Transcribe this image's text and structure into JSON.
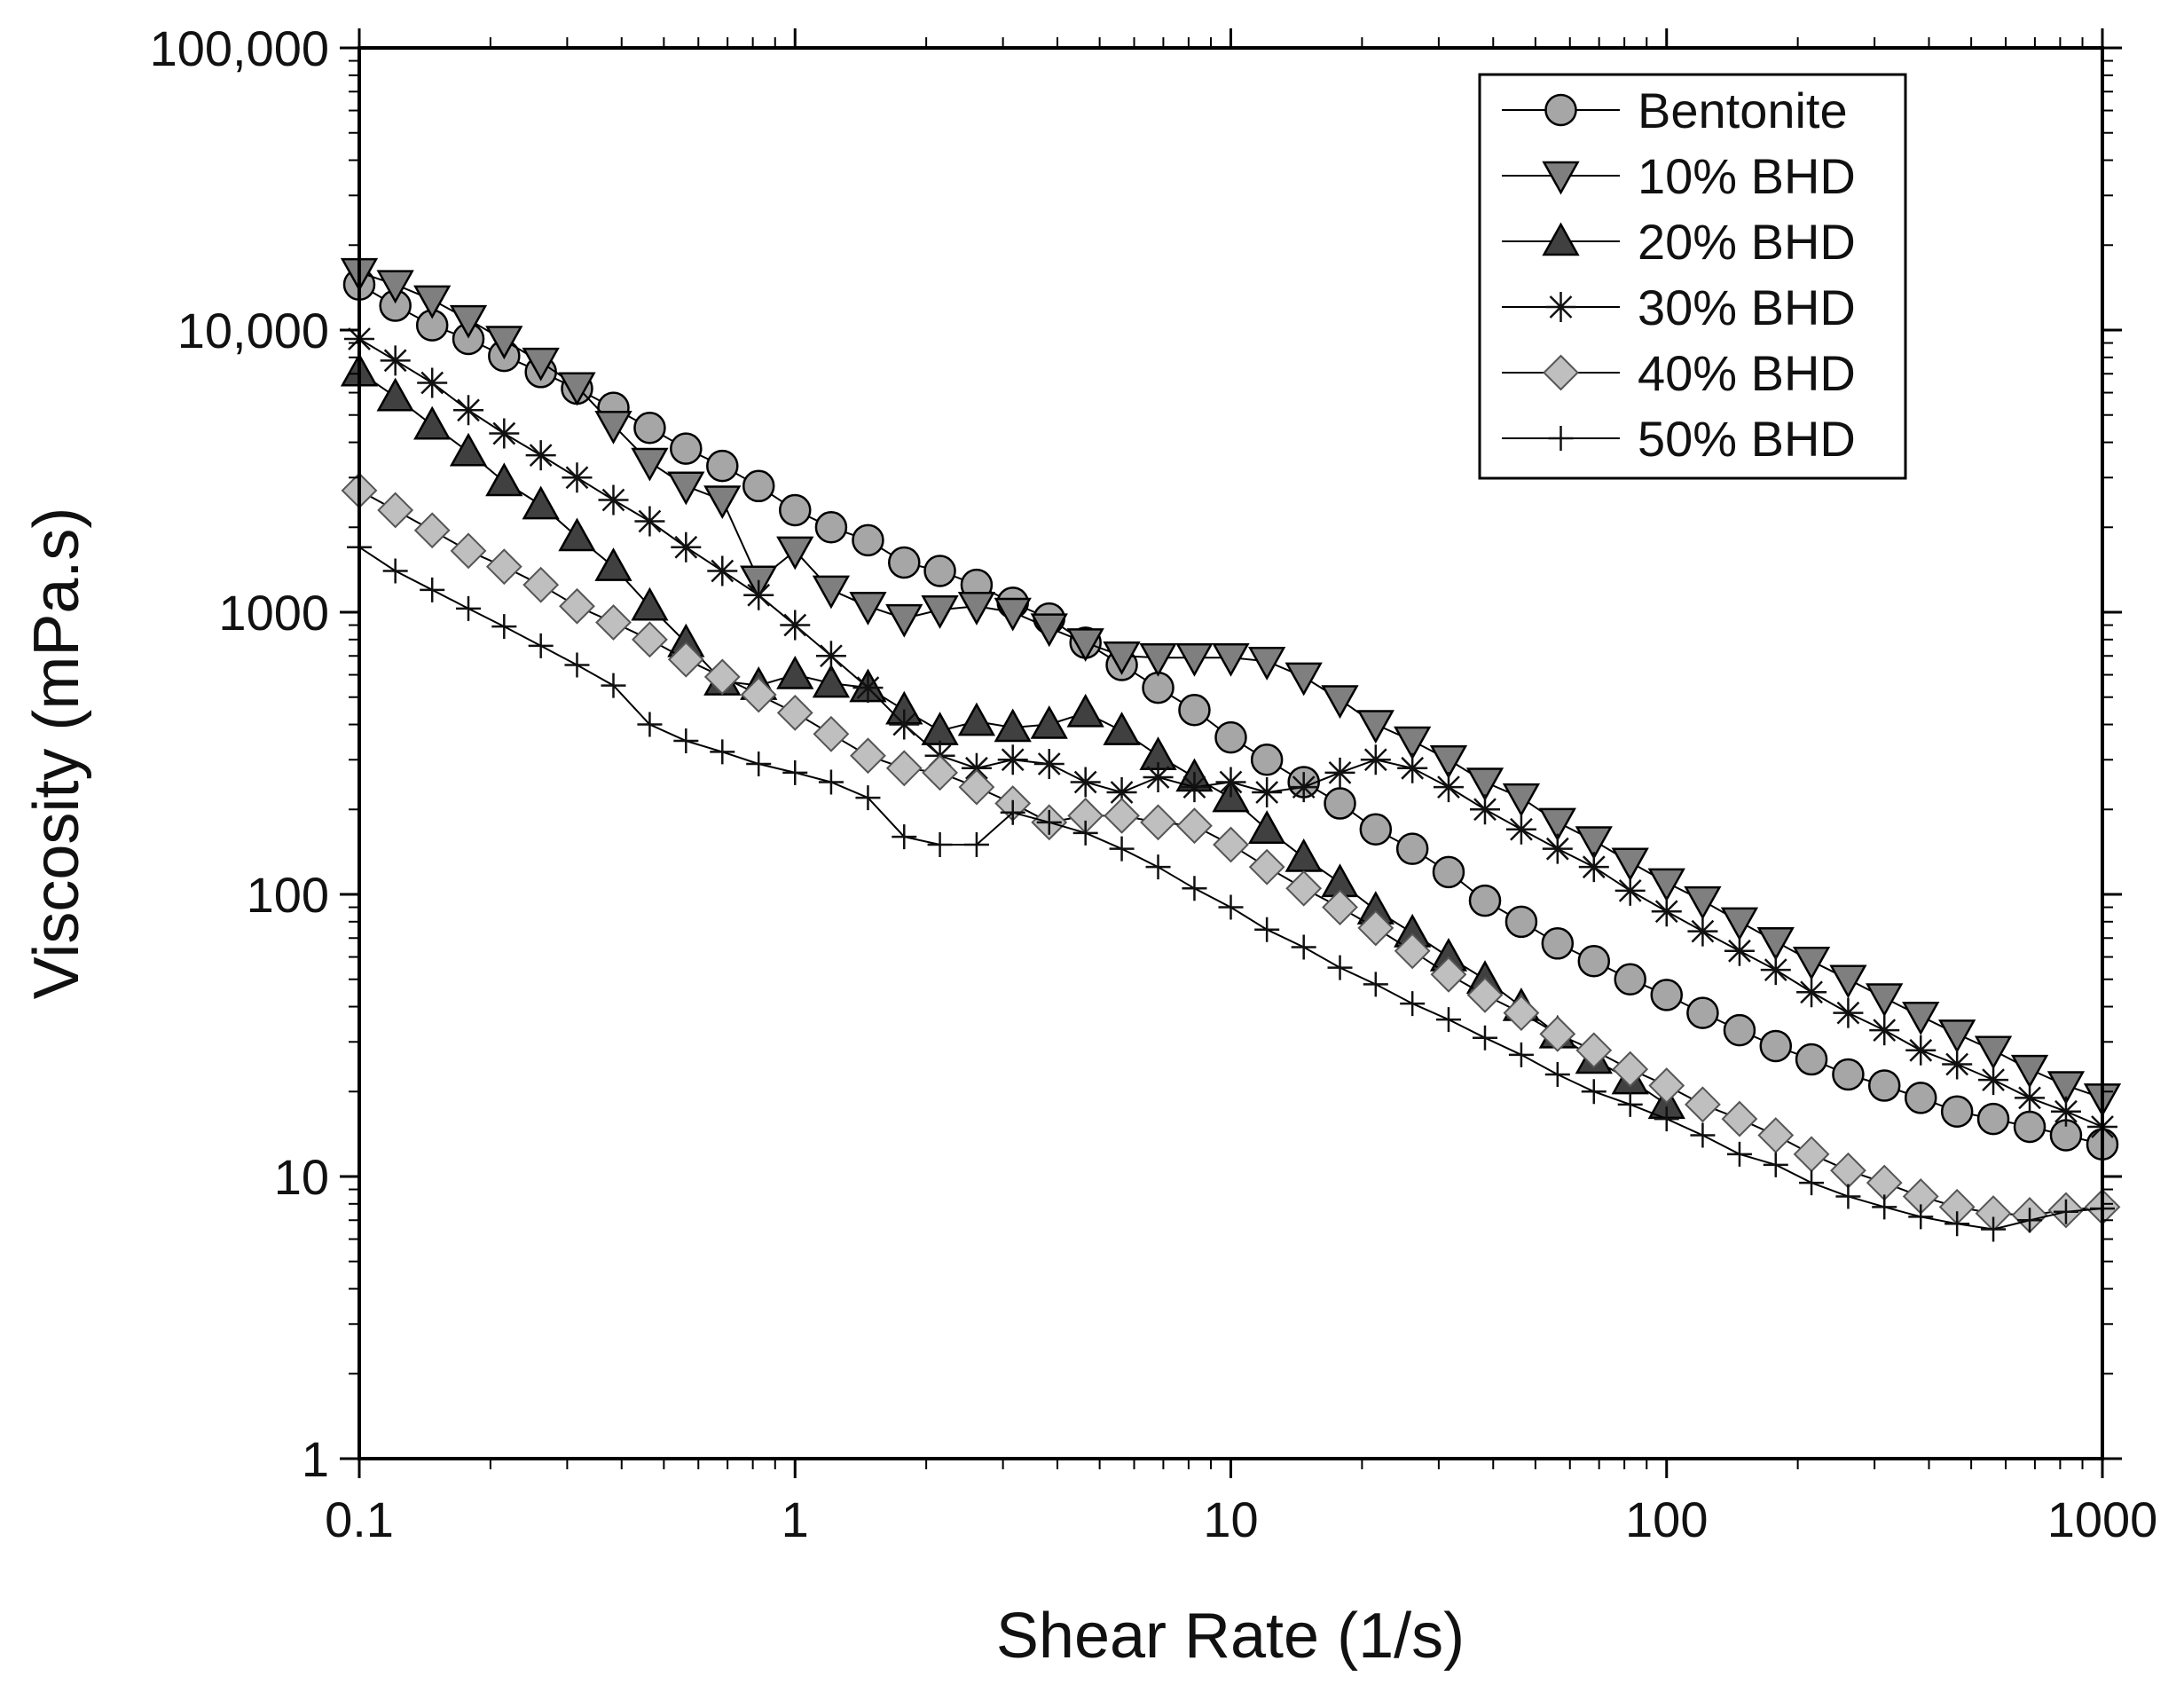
{
  "chart_data": {
    "type": "scatter",
    "xlabel": "Shear Rate (1/s)",
    "ylabel": "Viscosity (mPa.s)",
    "xscale": "log",
    "yscale": "log",
    "xlim": [
      0.1,
      1000
    ],
    "ylim": [
      1,
      100000
    ],
    "x_ticks": [
      {
        "value": 0.1,
        "label": "0.1"
      },
      {
        "value": 1,
        "label": "1"
      },
      {
        "value": 10,
        "label": "10"
      },
      {
        "value": 100,
        "label": "100"
      },
      {
        "value": 1000,
        "label": "1000"
      }
    ],
    "y_ticks": [
      {
        "value": 1,
        "label": "1"
      },
      {
        "value": 10,
        "label": "10"
      },
      {
        "value": 100,
        "label": "100"
      },
      {
        "value": 1000,
        "label": "1000"
      },
      {
        "value": 10000,
        "label": "10,000"
      },
      {
        "value": 100000,
        "label": "100,000"
      }
    ],
    "legend_position": "top-right",
    "series": [
      {
        "name": "Bentonite",
        "marker": "circle",
        "fill": "#a6a6a6",
        "x": [
          0.1,
          0.121,
          0.147,
          0.178,
          0.215,
          0.261,
          0.316,
          0.383,
          0.464,
          0.562,
          0.681,
          0.825,
          1.0,
          1.21,
          1.47,
          1.78,
          2.15,
          2.61,
          3.16,
          3.83,
          4.64,
          5.62,
          6.81,
          8.25,
          10.0,
          12.1,
          14.7,
          17.8,
          21.5,
          26.1,
          31.6,
          38.3,
          46.4,
          56.2,
          68.1,
          82.5,
          100,
          121,
          147,
          178,
          215,
          261,
          316,
          383,
          464,
          562,
          681,
          825,
          1000
        ],
        "y": [
          14500,
          12200,
          10400,
          9300,
          8100,
          7100,
          6200,
          5300,
          4500,
          3800,
          3300,
          2800,
          2300,
          2000,
          1800,
          1500,
          1400,
          1250,
          1080,
          950,
          780,
          650,
          540,
          450,
          360,
          300,
          250,
          210,
          170,
          145,
          120,
          95,
          80,
          67,
          58,
          50,
          44,
          38,
          33,
          29,
          26,
          23,
          21,
          19,
          17,
          16,
          15,
          14,
          13
        ]
      },
      {
        "name": "10% BHD",
        "marker": "triangle-down",
        "fill": "#7f7f7f",
        "x": [
          0.1,
          0.121,
          0.147,
          0.178,
          0.215,
          0.261,
          0.316,
          0.383,
          0.464,
          0.562,
          0.681,
          0.825,
          1.0,
          1.21,
          1.47,
          1.78,
          2.15,
          2.61,
          3.16,
          3.83,
          4.64,
          5.62,
          6.81,
          8.25,
          10.0,
          12.1,
          14.7,
          17.8,
          21.5,
          26.1,
          31.6,
          38.3,
          46.4,
          56.2,
          68.1,
          82.5,
          100,
          121,
          147,
          178,
          215,
          261,
          316,
          383,
          464,
          562,
          681,
          825,
          1000
        ],
        "y": [
          16000,
          14500,
          12800,
          10900,
          9200,
          7700,
          6300,
          4600,
          3400,
          2800,
          2500,
          1300,
          1650,
          1200,
          1050,
          950,
          1020,
          1050,
          1000,
          880,
          780,
          700,
          690,
          690,
          690,
          670,
          590,
          490,
          400,
          350,
          300,
          250,
          220,
          180,
          155,
          130,
          110,
          95,
          80,
          68,
          58,
          50,
          43,
          37,
          32,
          28,
          24,
          21,
          19
        ]
      },
      {
        "name": "20% BHD",
        "marker": "triangle-up",
        "fill": "#404040",
        "x": [
          0.1,
          0.121,
          0.147,
          0.178,
          0.215,
          0.261,
          0.316,
          0.383,
          0.464,
          0.562,
          0.681,
          0.825,
          1.0,
          1.21,
          1.47,
          1.78,
          2.15,
          2.61,
          3.16,
          3.83,
          4.64,
          5.62,
          6.81,
          8.25,
          10.0,
          12.1,
          14.7,
          17.8,
          21.5,
          26.1,
          31.6,
          38.3,
          46.4,
          56.2,
          68.1,
          82.5,
          100
        ],
        "y": [
          7100,
          5800,
          4600,
          3700,
          2900,
          2400,
          1850,
          1450,
          1050,
          780,
          570,
          550,
          600,
          560,
          540,
          450,
          380,
          410,
          390,
          400,
          440,
          380,
          310,
          260,
          220,
          170,
          135,
          110,
          88,
          73,
          60,
          50,
          40,
          32,
          26,
          22,
          18
        ]
      },
      {
        "name": "30% BHD",
        "marker": "asterisk",
        "fill": "#111111",
        "x": [
          0.1,
          0.121,
          0.147,
          0.178,
          0.215,
          0.261,
          0.316,
          0.383,
          0.464,
          0.562,
          0.681,
          0.825,
          1.0,
          1.21,
          1.47,
          1.78,
          2.15,
          2.61,
          3.16,
          3.83,
          4.64,
          5.62,
          6.81,
          8.25,
          10.0,
          12.1,
          14.7,
          17.8,
          21.5,
          26.1,
          31.6,
          38.3,
          46.4,
          56.2,
          68.1,
          82.5,
          100,
          121,
          147,
          178,
          215,
          261,
          316,
          383,
          464,
          562,
          681,
          825,
          1000
        ],
        "y": [
          9300,
          7800,
          6500,
          5200,
          4300,
          3600,
          3000,
          2500,
          2100,
          1700,
          1400,
          1150,
          900,
          700,
          540,
          400,
          310,
          280,
          300,
          290,
          250,
          230,
          260,
          240,
          250,
          230,
          240,
          270,
          300,
          280,
          240,
          200,
          170,
          145,
          125,
          103,
          87,
          74,
          63,
          54,
          45,
          38,
          33,
          28,
          25,
          22,
          19,
          17,
          15
        ]
      },
      {
        "name": "40% BHD",
        "marker": "diamond",
        "fill": "#bfbfbf",
        "x": [
          0.1,
          0.121,
          0.147,
          0.178,
          0.215,
          0.261,
          0.316,
          0.383,
          0.464,
          0.562,
          0.681,
          0.825,
          1.0,
          1.21,
          1.47,
          1.78,
          2.15,
          2.61,
          3.16,
          3.83,
          4.64,
          5.62,
          6.81,
          8.25,
          10.0,
          12.1,
          14.7,
          17.8,
          21.5,
          26.1,
          31.6,
          38.3,
          46.4,
          56.2,
          68.1,
          82.5,
          100,
          121,
          147,
          178,
          215,
          261,
          316,
          383,
          464,
          562,
          681,
          825,
          1000
        ],
        "y": [
          2700,
          2300,
          1950,
          1650,
          1450,
          1250,
          1050,
          920,
          800,
          680,
          590,
          510,
          440,
          370,
          310,
          280,
          270,
          240,
          210,
          180,
          190,
          190,
          180,
          175,
          150,
          125,
          105,
          90,
          76,
          63,
          52,
          44,
          38,
          32,
          28,
          24,
          21,
          18,
          16,
          14,
          12,
          10.5,
          9.5,
          8.5,
          7.8,
          7.4,
          7.3,
          7.6,
          7.8
        ]
      },
      {
        "name": "50% BHD",
        "marker": "plus",
        "fill": "#111111",
        "x": [
          0.1,
          0.121,
          0.147,
          0.178,
          0.215,
          0.261,
          0.316,
          0.383,
          0.464,
          0.562,
          0.681,
          0.825,
          1.0,
          1.21,
          1.47,
          1.78,
          2.15,
          2.61,
          3.16,
          3.83,
          4.64,
          5.62,
          6.81,
          8.25,
          10.0,
          12.1,
          14.7,
          17.8,
          21.5,
          26.1,
          31.6,
          38.3,
          46.4,
          56.2,
          68.1,
          82.5,
          100,
          121,
          147,
          178,
          215,
          261,
          316,
          383,
          464,
          562,
          681,
          825,
          1000
        ],
        "y": [
          1700,
          1400,
          1200,
          1030,
          890,
          760,
          650,
          550,
          400,
          350,
          320,
          290,
          270,
          250,
          220,
          160,
          150,
          150,
          195,
          180,
          165,
          145,
          125,
          105,
          90,
          75,
          65,
          55,
          48,
          41,
          36,
          31,
          27,
          23,
          20,
          18,
          16,
          14,
          12,
          11,
          9.5,
          8.5,
          7.8,
          7.2,
          6.8,
          6.5,
          7,
          7.5,
          7.7
        ]
      }
    ]
  }
}
